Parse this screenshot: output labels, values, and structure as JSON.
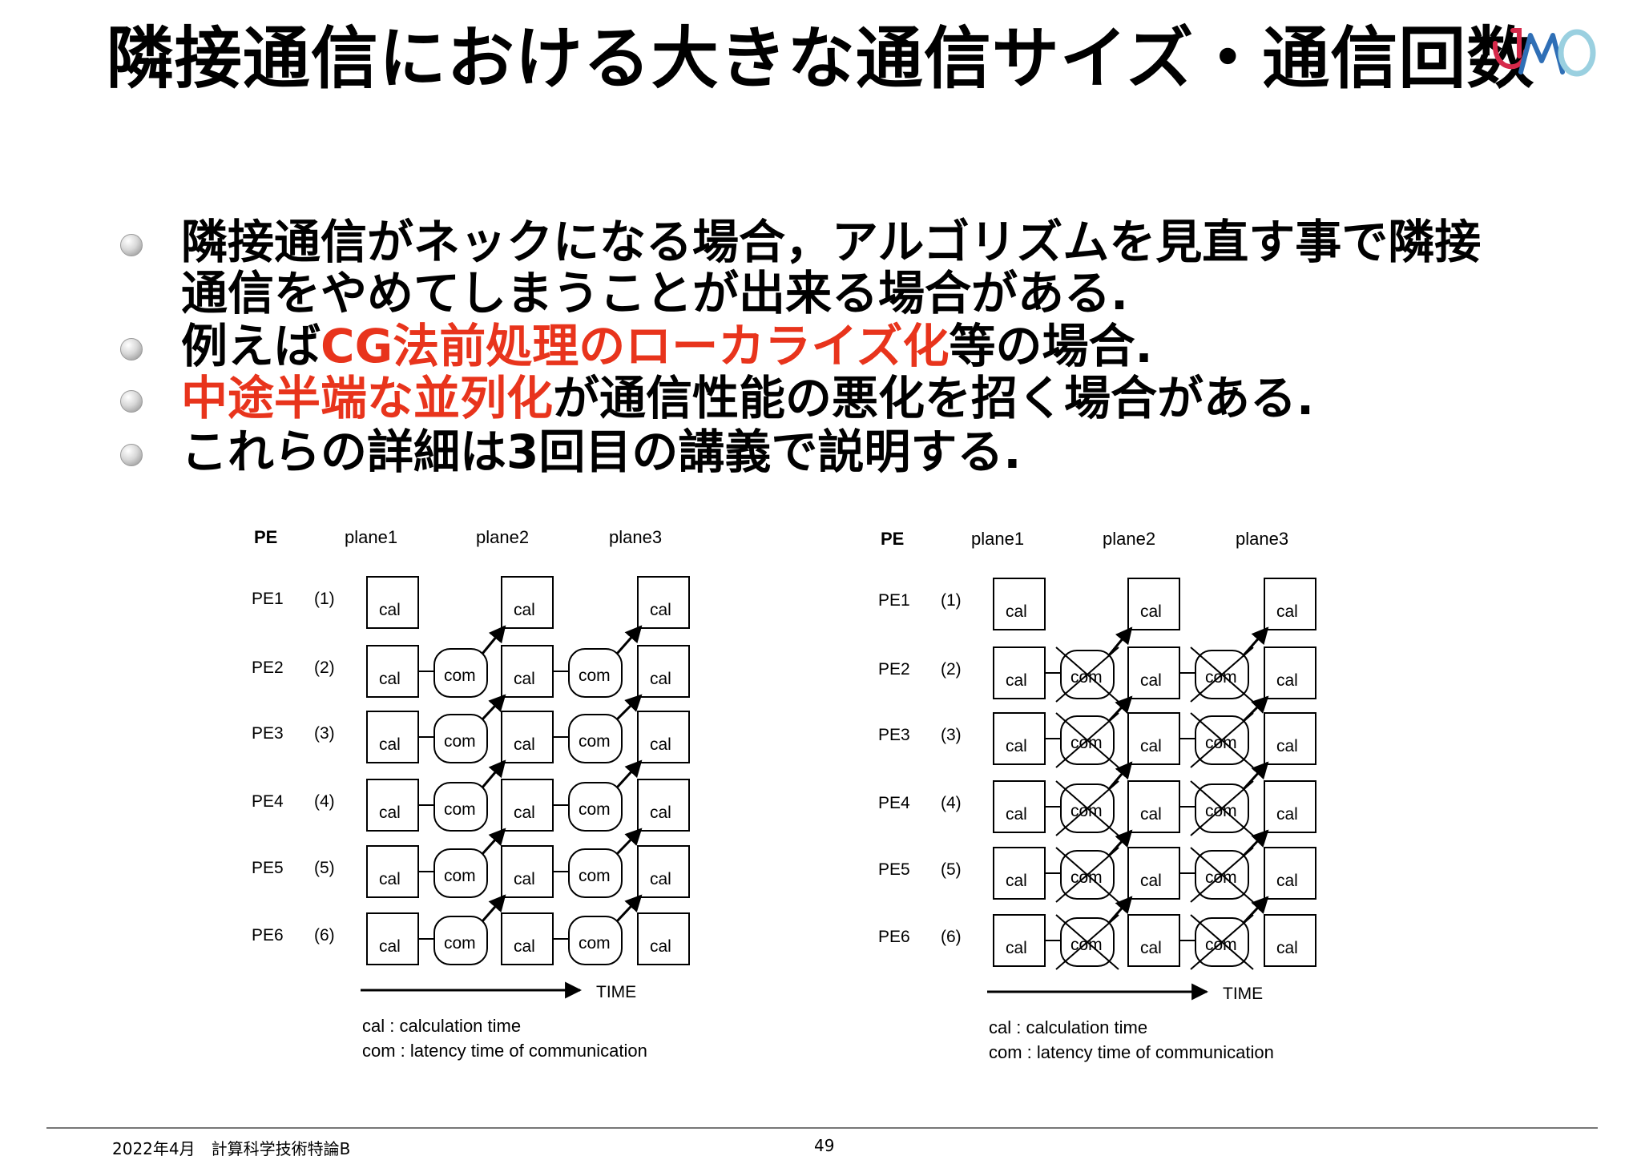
{
  "title": "隣接通信における大きな通信サイズ・通信回数",
  "logo": {
    "icon": "jamstec-logo-icon",
    "colors": [
      "#d6294a",
      "#2f6fb6",
      "#9ad0e0"
    ]
  },
  "bullets": [
    {
      "lines": [
        [
          {
            "text": "隣接通信がネックになる場合，アルゴリズムを見直す事で隣接",
            "color": "#000000"
          }
        ],
        [
          {
            "text": "通信をやめてしまうことが出来る場合がある.",
            "color": "#000000"
          }
        ]
      ]
    },
    {
      "lines": [
        [
          {
            "text": "例えば",
            "color": "#000000"
          },
          {
            "text": "CG法前処理のローカライズ化",
            "color": "#e8341c"
          },
          {
            "text": "等の場合.",
            "color": "#000000"
          }
        ]
      ]
    },
    {
      "lines": [
        [
          {
            "text": "中途半端な並列化",
            "color": "#e8341c"
          },
          {
            "text": "が通信性能の悪化を招く場合がある.",
            "color": "#000000"
          }
        ]
      ]
    },
    {
      "lines": [
        [
          {
            "text": "これらの詳細は3回目の講義で説明する.",
            "color": "#000000"
          }
        ]
      ]
    }
  ],
  "diagram": {
    "pe_header": "PE",
    "planes": [
      "plane1",
      "plane2",
      "plane3"
    ],
    "rows": [
      {
        "pe": "PE1",
        "idx": "(1)"
      },
      {
        "pe": "PE2",
        "idx": "(2)"
      },
      {
        "pe": "PE3",
        "idx": "(3)"
      },
      {
        "pe": "PE4",
        "idx": "(4)"
      },
      {
        "pe": "PE5",
        "idx": "(5)"
      },
      {
        "pe": "PE6",
        "idx": "(6)"
      }
    ],
    "cal_label": "cal",
    "com_label": "com",
    "time_label": "TIME",
    "legend": [
      "cal   : calculation time",
      "com : latency time of communication"
    ]
  },
  "footer": {
    "left": "2022年4月　計算科学技術特論B",
    "page": "49"
  }
}
